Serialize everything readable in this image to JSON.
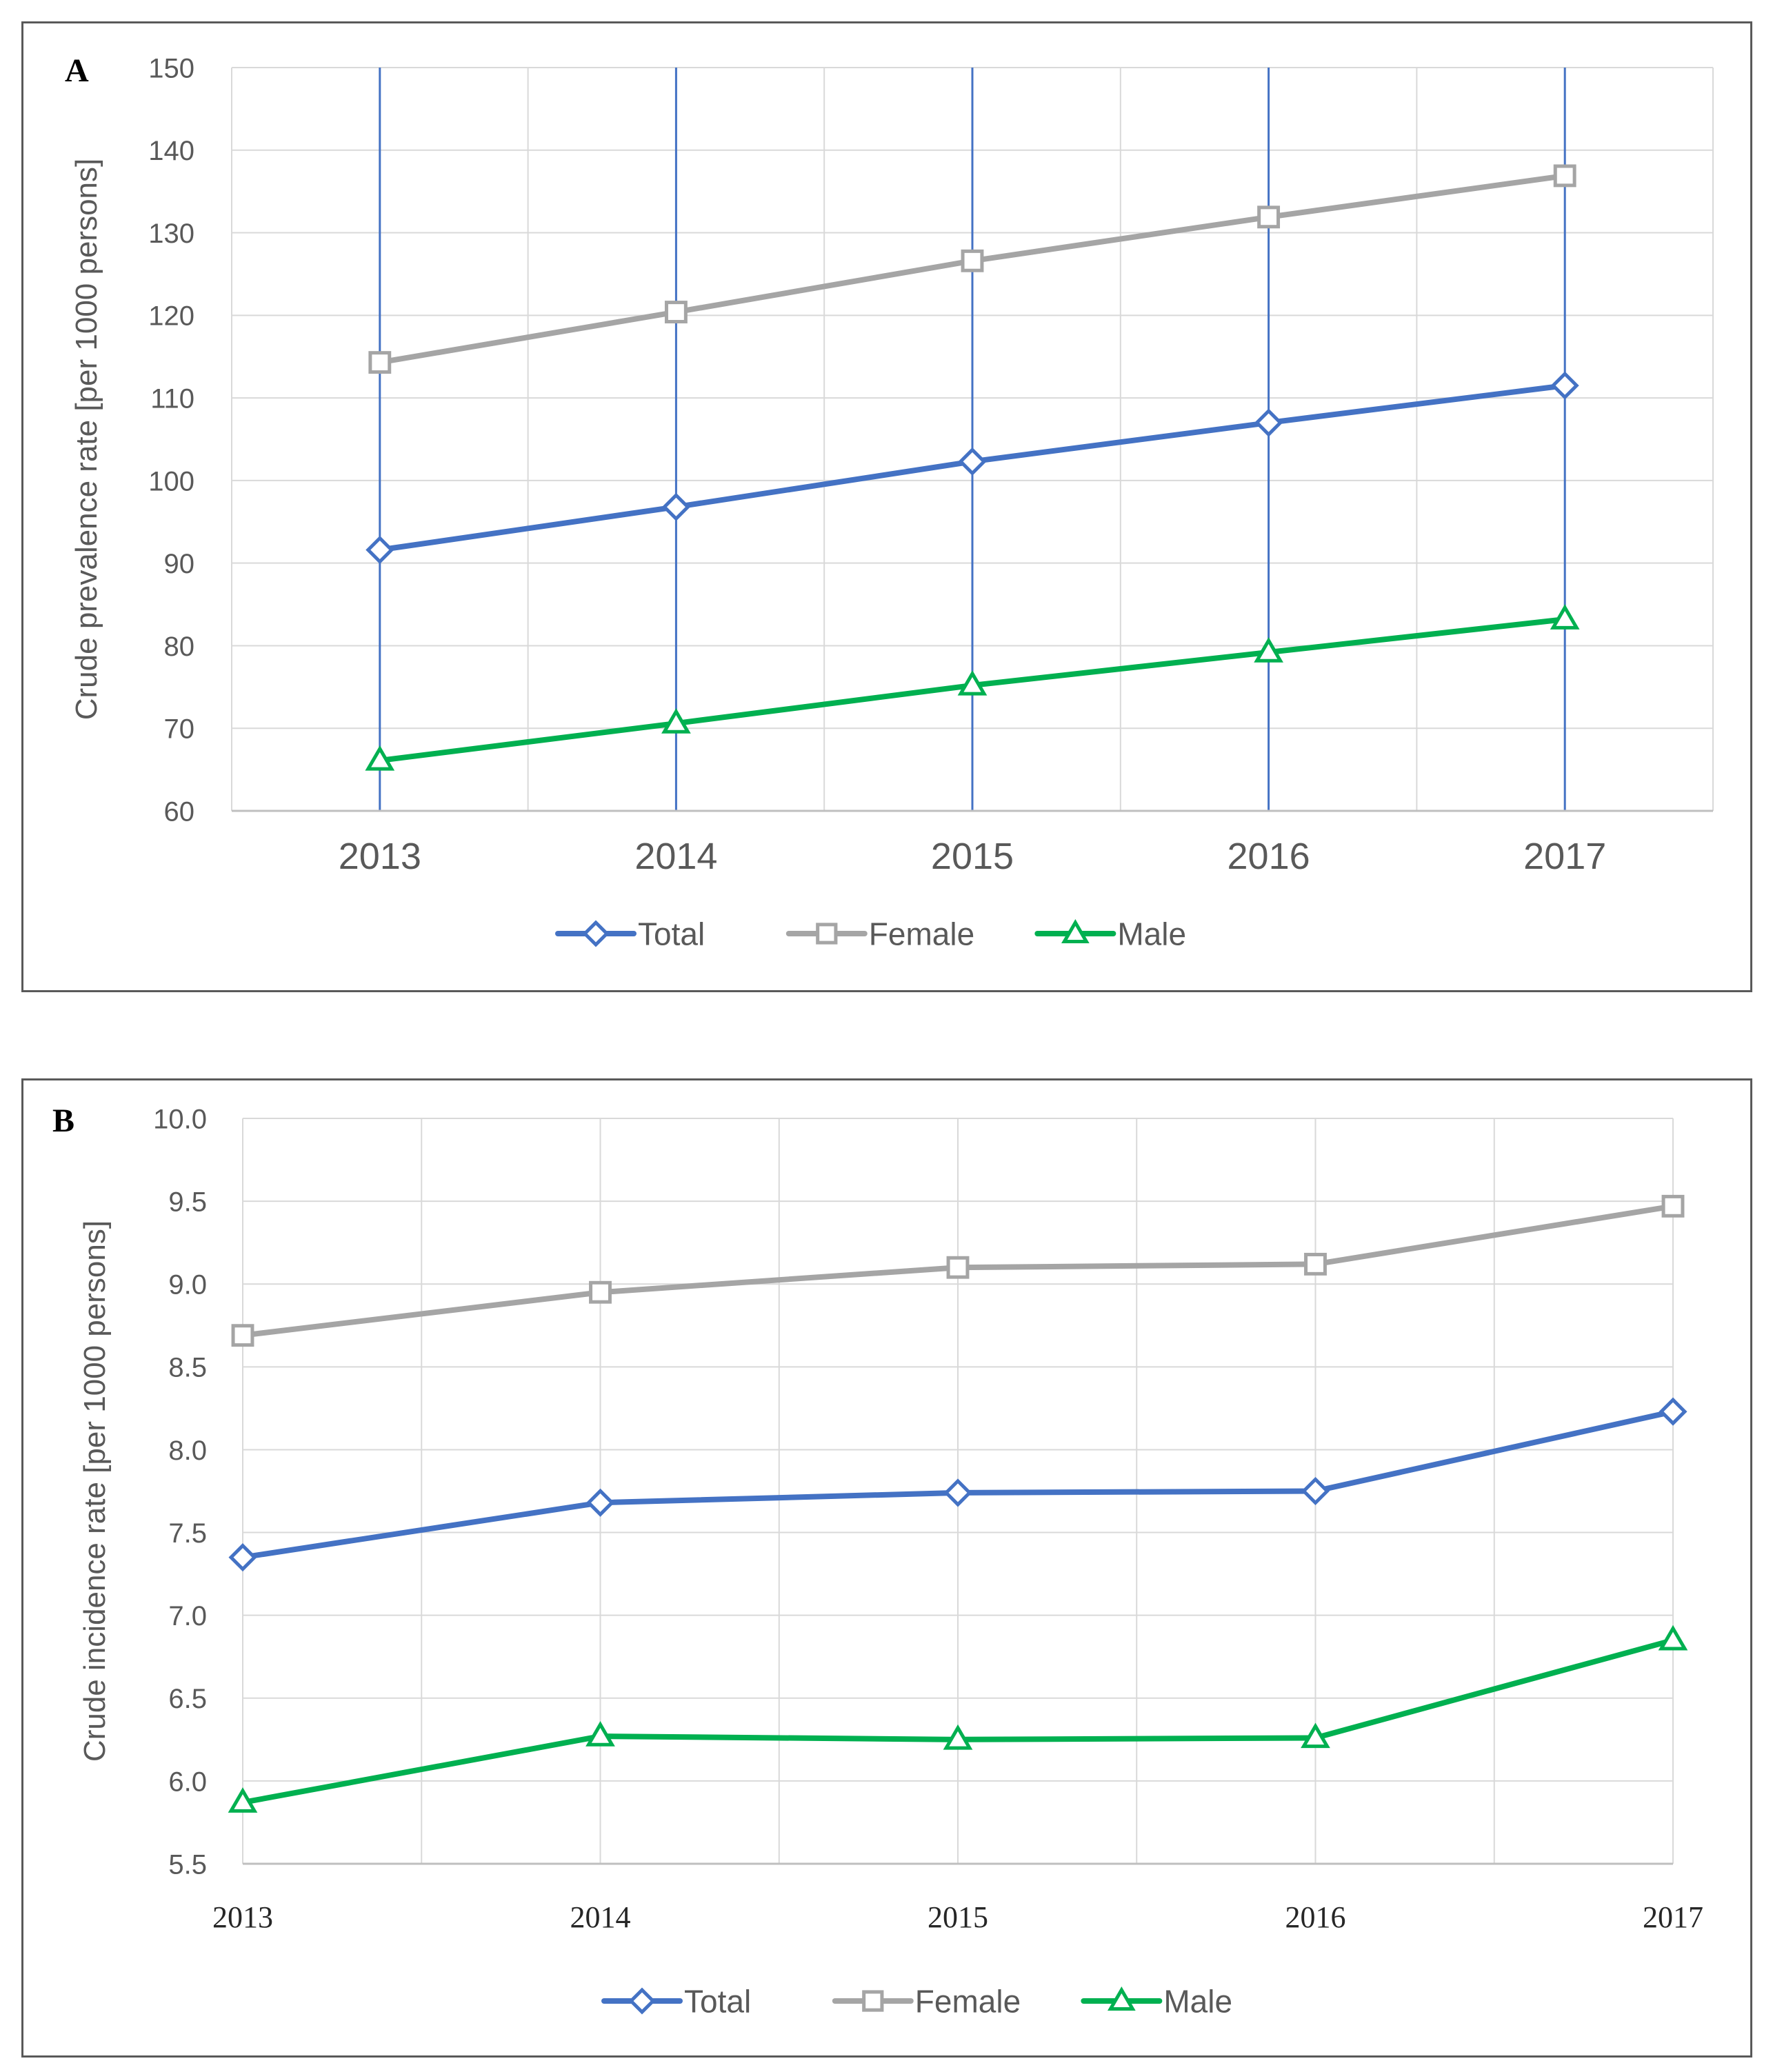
{
  "colors": {
    "total": "#4472C4",
    "female": "#A5A5A5",
    "male": "#00B050",
    "grid": "#D9D9D9",
    "text": "#595959",
    "vline": "#4472C4"
  },
  "chart_data": [
    {
      "panel_label": "A",
      "type": "line",
      "ylabel": "Crude prevalence rate [per 1000 persons]",
      "xlabel": "",
      "x": [
        "2013",
        "2014",
        "2015",
        "2016",
        "2017"
      ],
      "ylim": [
        60,
        150
      ],
      "yticks": [
        "60",
        "70",
        "80",
        "90",
        "100",
        "110",
        "120",
        "130",
        "140",
        "150"
      ],
      "grid": true,
      "legend": "bottom-center",
      "series": [
        {
          "name": "Total",
          "key": "total",
          "marker": "diamond",
          "values": [
            91.6,
            96.8,
            102.3,
            107.0,
            111.5
          ]
        },
        {
          "name": "Female",
          "key": "female",
          "marker": "square",
          "values": [
            114.3,
            120.4,
            126.6,
            131.9,
            136.9
          ]
        },
        {
          "name": "Male",
          "key": "male",
          "marker": "triangle",
          "values": [
            66.1,
            70.6,
            75.2,
            79.2,
            83.2
          ]
        }
      ]
    },
    {
      "panel_label": "B",
      "type": "line",
      "ylabel": "Crude incidence rate [per 1000 persons]",
      "xlabel": "",
      "x": [
        "2013",
        "2014",
        "2015",
        "2016",
        "2017"
      ],
      "ylim": [
        5.5,
        10.0
      ],
      "yticks": [
        "5.5",
        "6.0",
        "6.5",
        "7.0",
        "7.5",
        "8.0",
        "8.5",
        "9.0",
        "9.5",
        "10.0"
      ],
      "grid": true,
      "legend": "bottom-center",
      "series": [
        {
          "name": "Total",
          "key": "total",
          "marker": "diamond",
          "values": [
            7.35,
            7.68,
            7.74,
            7.75,
            8.23
          ]
        },
        {
          "name": "Female",
          "key": "female",
          "marker": "square",
          "values": [
            8.69,
            8.95,
            9.1,
            9.12,
            9.47
          ]
        },
        {
          "name": "Male",
          "key": "male",
          "marker": "triangle",
          "values": [
            5.87,
            6.27,
            6.25,
            6.26,
            6.85
          ]
        }
      ]
    }
  ]
}
